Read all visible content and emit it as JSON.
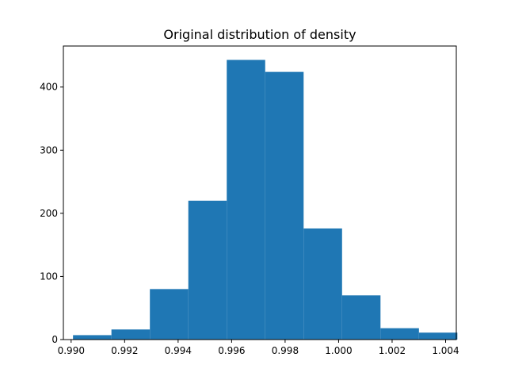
{
  "chart_data": {
    "type": "bar",
    "title": "Original distribution of density",
    "xlabel": "",
    "ylabel": "",
    "xlim": [
      0.98971,
      1.0044
    ],
    "ylim": [
      0,
      465
    ],
    "bin_edges": [
      0.99007,
      0.991507,
      0.992944,
      0.994381,
      0.995818,
      0.997255,
      0.998692,
      1.000129,
      1.001566,
      1.003003,
      1.00444
    ],
    "counts": [
      7,
      16,
      80,
      220,
      443,
      424,
      176,
      70,
      18,
      11
    ],
    "x_ticks": [
      "0.990",
      "0.992",
      "0.994",
      "0.996",
      "0.998",
      "1.000",
      "1.002",
      "1.004"
    ],
    "x_tick_values": [
      0.99,
      0.992,
      0.994,
      0.996,
      0.998,
      1.0,
      1.002,
      1.004
    ],
    "y_ticks": [
      "0",
      "100",
      "200",
      "300",
      "400"
    ],
    "y_tick_values": [
      0,
      100,
      200,
      300,
      400
    ],
    "bar_color": "#1f77b4",
    "grid": false,
    "legend": "none"
  }
}
